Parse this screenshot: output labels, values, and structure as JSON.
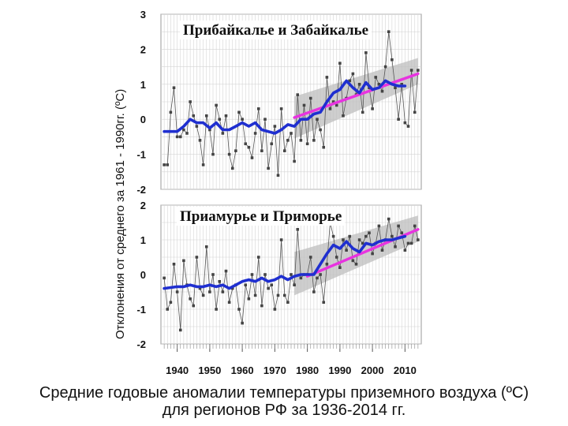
{
  "chart_data": {
    "type": "line",
    "ylabel": "Отклонения от среднего за 1961 - 1990гг. (ºC)",
    "xlabel": "",
    "x_ticks": [
      1940,
      1950,
      1960,
      1970,
      1980,
      1990,
      2000,
      2010
    ],
    "xlim": [
      1935,
      2015
    ],
    "caption_line1": "Средние годовые аномалии температуры приземного воздуха (ºС)",
    "caption_line2": "для регионов РФ за 1936-2014 гг.",
    "colors": {
      "smooth": "#1f2fd0",
      "trend": "#e833e0",
      "band": "#bdbdbd",
      "annual": "#555555"
    },
    "panels": [
      {
        "title": "Прибайкалье и Забайкалье",
        "ylim": [
          -2,
          3
        ],
        "y_ticks": [
          -2,
          -1,
          0,
          1,
          2,
          3
        ],
        "series": [
          {
            "name": "annual anomaly",
            "style": "thin line with square markers",
            "x": [
              1936,
              1937,
              1938,
              1939,
              1940,
              1941,
              1942,
              1943,
              1944,
              1945,
              1946,
              1947,
              1948,
              1949,
              1950,
              1951,
              1952,
              1953,
              1954,
              1955,
              1956,
              1957,
              1958,
              1959,
              1960,
              1961,
              1962,
              1963,
              1964,
              1965,
              1966,
              1967,
              1968,
              1969,
              1970,
              1971,
              1972,
              1973,
              1974,
              1975,
              1976,
              1977,
              1978,
              1979,
              1980,
              1981,
              1982,
              1983,
              1984,
              1985,
              1986,
              1987,
              1988,
              1989,
              1990,
              1991,
              1992,
              1993,
              1994,
              1995,
              1996,
              1997,
              1998,
              1999,
              2000,
              2001,
              2002,
              2003,
              2004,
              2005,
              2006,
              2007,
              2008,
              2009,
              2010,
              2011,
              2012,
              2013,
              2014
            ],
            "values": [
              -1.3,
              -1.3,
              0.2,
              0.9,
              -0.5,
              -0.5,
              -0.3,
              -0.4,
              0.5,
              0.1,
              -0.2,
              -0.6,
              -1.3,
              0.1,
              -0.3,
              -1.0,
              0.4,
              0.0,
              -0.4,
              0.1,
              -1.0,
              -1.4,
              -0.9,
              0.2,
              0.0,
              -0.7,
              -0.8,
              -1.1,
              -0.4,
              0.3,
              -0.9,
              0.0,
              -1.4,
              -0.7,
              -0.2,
              -1.6,
              0.3,
              -0.9,
              -0.6,
              -0.4,
              -1.2,
              0.7,
              -0.6,
              0.4,
              -0.7,
              0.6,
              -0.6,
              0.0,
              -0.3,
              -0.8,
              1.2,
              0.3,
              0.5,
              0.4,
              1.6,
              0.1,
              0.6,
              1.1,
              1.3,
              0.7,
              1.0,
              0.2,
              1.9,
              0.9,
              0.3,
              1.2,
              1.0,
              0.8,
              1.5,
              2.5,
              1.7,
              0.9,
              0.0,
              1.0,
              -0.1,
              -0.2,
              1.4,
              0.2,
              1.4
            ]
          },
          {
            "name": "smoothed",
            "style": "thick blue",
            "x": [
              1936,
              1940,
              1942,
              1944,
              1946,
              1948,
              1950,
              1952,
              1954,
              1956,
              1958,
              1960,
              1962,
              1964,
              1966,
              1968,
              1970,
              1972,
              1974,
              1976,
              1978,
              1980,
              1982,
              1984,
              1986,
              1988,
              1990,
              1992,
              1994,
              1996,
              1998,
              2000,
              2002,
              2004,
              2006,
              2008,
              2010
            ],
            "values": [
              -0.35,
              -0.35,
              -0.2,
              0.0,
              -0.1,
              -0.1,
              -0.25,
              -0.1,
              -0.3,
              -0.3,
              -0.2,
              -0.1,
              -0.2,
              -0.1,
              -0.3,
              -0.35,
              -0.4,
              -0.3,
              -0.15,
              -0.2,
              0.0,
              0.0,
              0.15,
              0.2,
              0.5,
              0.75,
              0.85,
              1.1,
              0.9,
              0.75,
              1.05,
              0.85,
              0.9,
              1.1,
              1.0,
              0.95,
              0.95
            ]
          },
          {
            "name": "linear trend",
            "style": "magenta",
            "x": [
              1976,
              2014
            ],
            "values": [
              0.05,
              1.3
            ]
          },
          {
            "name": "confidence band",
            "style": "grey",
            "x": [
              1976,
              2014
            ],
            "lower": [
              -0.55,
              1.0
            ],
            "upper": [
              0.65,
              1.75
            ]
          }
        ]
      },
      {
        "title": "Приамурье и Приморье",
        "ylim": [
          -2,
          2
        ],
        "y_ticks": [
          -2,
          -1,
          0,
          1,
          2
        ],
        "series": [
          {
            "name": "annual anomaly",
            "style": "thin line with square markers",
            "x": [
              1936,
              1937,
              1938,
              1939,
              1940,
              1941,
              1942,
              1943,
              1944,
              1945,
              1946,
              1947,
              1948,
              1949,
              1950,
              1951,
              1952,
              1953,
              1954,
              1955,
              1956,
              1957,
              1958,
              1959,
              1960,
              1961,
              1962,
              1963,
              1964,
              1965,
              1966,
              1967,
              1968,
              1969,
              1970,
              1971,
              1972,
              1973,
              1974,
              1975,
              1976,
              1977,
              1978,
              1979,
              1980,
              1981,
              1982,
              1983,
              1984,
              1985,
              1986,
              1987,
              1988,
              1989,
              1990,
              1991,
              1992,
              1993,
              1994,
              1995,
              1996,
              1997,
              1998,
              1999,
              2000,
              2001,
              2002,
              2003,
              2004,
              2005,
              2006,
              2007,
              2008,
              2009,
              2010,
              2011,
              2012,
              2013,
              2014
            ],
            "values": [
              -0.1,
              -1.0,
              -0.8,
              0.3,
              -0.5,
              -1.6,
              0.4,
              -0.3,
              -0.7,
              -0.9,
              0.5,
              -0.4,
              -0.6,
              0.8,
              -0.5,
              0.0,
              -1.0,
              -0.2,
              -0.5,
              0.1,
              -0.8,
              -0.4,
              -0.3,
              -1.0,
              -1.4,
              -0.3,
              -0.7,
              0.0,
              -0.6,
              0.5,
              -0.9,
              0.0,
              -0.4,
              -0.3,
              -1.0,
              -0.6,
              1.0,
              -0.6,
              -0.8,
              0.0,
              -0.3,
              1.3,
              -0.1,
              0.0,
              0.0,
              0.5,
              -0.5,
              -0.1,
              0.0,
              -0.8,
              0.3,
              1.5,
              1.1,
              0.5,
              0.2,
              1.0,
              0.7,
              1.1,
              0.4,
              0.3,
              1.0,
              0.9,
              1.1,
              1.2,
              0.6,
              0.9,
              1.4,
              0.7,
              1.0,
              1.6,
              1.1,
              0.8,
              1.4,
              1.2,
              0.7,
              0.9,
              0.9,
              1.4,
              1.0
            ]
          },
          {
            "name": "smoothed",
            "style": "thick blue",
            "x": [
              1936,
              1940,
              1942,
              1944,
              1946,
              1948,
              1950,
              1952,
              1954,
              1956,
              1958,
              1960,
              1962,
              1964,
              1966,
              1968,
              1970,
              1972,
              1974,
              1976,
              1978,
              1980,
              1982,
              1984,
              1986,
              1988,
              1990,
              1992,
              1994,
              1996,
              1998,
              2000,
              2002,
              2004,
              2006,
              2008,
              2010
            ],
            "values": [
              -0.4,
              -0.35,
              -0.35,
              -0.3,
              -0.35,
              -0.35,
              -0.3,
              -0.35,
              -0.3,
              -0.4,
              -0.3,
              -0.2,
              -0.15,
              -0.2,
              -0.1,
              -0.2,
              -0.15,
              -0.05,
              -0.15,
              -0.05,
              0.0,
              0.0,
              0.0,
              0.3,
              0.6,
              0.85,
              0.75,
              0.95,
              0.75,
              0.65,
              0.9,
              0.85,
              0.95,
              1.0,
              1.0,
              1.05,
              1.1
            ]
          },
          {
            "name": "linear trend",
            "style": "magenta",
            "x": [
              1980,
              2014
            ],
            "values": [
              -0.05,
              1.3
            ]
          },
          {
            "name": "confidence band",
            "style": "grey",
            "x": [
              1976,
              2014
            ],
            "lower": [
              -0.6,
              0.95
            ],
            "upper": [
              0.65,
              1.7
            ]
          }
        ]
      }
    ]
  }
}
